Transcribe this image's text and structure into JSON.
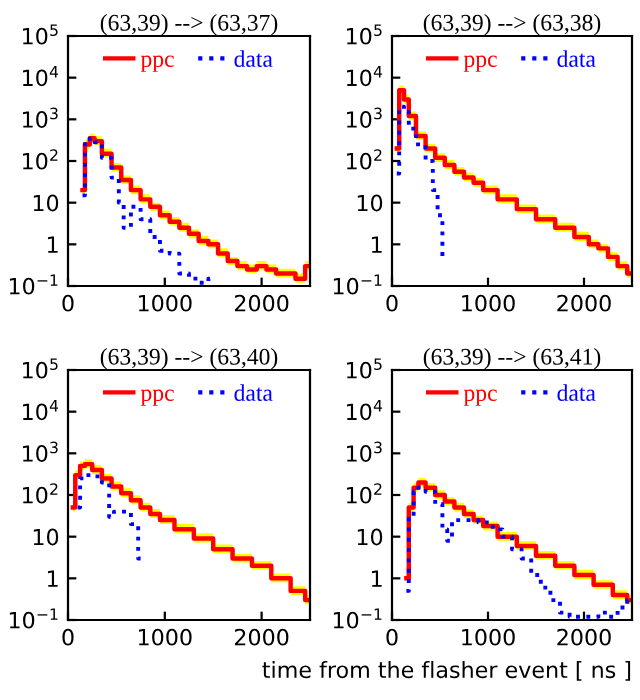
{
  "chart_data": [
    {
      "type": "step",
      "title": "(63,39) --> (63,37)",
      "log": "y",
      "legend": "top",
      "xlim": [
        0,
        2500
      ],
      "ylim": [
        0.1,
        100000
      ],
      "xticks": [
        0,
        1000,
        2000
      ],
      "yticks": [
        {
          "value": 0.1,
          "label": "10$^{−1}$"
        },
        1,
        10,
        {
          "value": 100,
          "label": "10$^{2}$"
        },
        {
          "value": 1000,
          "label": "10$^{3}$"
        },
        {
          "value": 10000,
          "label": "10$^{4}$"
        },
        {
          "value": 100000,
          "label": "10$^{5}$"
        }
      ],
      "series": [
        {
          "name": "ppc",
          "color": "#ff0000",
          "line_style": "solid",
          "x": [
            150,
            200,
            250,
            300,
            400,
            500,
            600,
            700,
            800,
            900,
            1000,
            1100,
            1200,
            1300,
            1400,
            1500,
            1600,
            1700,
            1800,
            1900,
            2000,
            2100,
            2200,
            2300,
            2400,
            2500
          ],
          "values": [
            20,
            250,
            350,
            300,
            150,
            70,
            35,
            20,
            12,
            8,
            5,
            3.5,
            2.5,
            1.8,
            1.2,
            1,
            0.6,
            0.4,
            0.3,
            0.25,
            0.3,
            0.25,
            0.2,
            0.2,
            0.15,
            0.3
          ],
          "lower": [
            15,
            200,
            280,
            240,
            120,
            55,
            28,
            16,
            9.5,
            6.4,
            4,
            2.8,
            2,
            1.4,
            0.95,
            0.8,
            0.48,
            0.32,
            0.24,
            0.2,
            0.24,
            0.2,
            0.16,
            0.16,
            0.12,
            0.24
          ],
          "upper": [
            26,
            320,
            450,
            390,
            200,
            90,
            45,
            26,
            16,
            10,
            6.5,
            4.5,
            3.3,
            2.3,
            1.6,
            1.3,
            0.8,
            0.5,
            0.4,
            0.33,
            0.4,
            0.33,
            0.26,
            0.26,
            0.2,
            0.4
          ]
        },
        {
          "name": "data",
          "color": "#0000ff",
          "line_style": "dotted",
          "x": [
            150,
            200,
            250,
            300,
            400,
            500,
            550,
            600,
            700,
            800,
            900,
            1000,
            1100,
            1200,
            1300,
            1400,
            1500
          ],
          "values": [
            15,
            300,
            350,
            280,
            120,
            40,
            10,
            2.5,
            8,
            4,
            1.5,
            0.7,
            0.6,
            0.2,
            0.15,
            0.12,
            0.15
          ]
        }
      ]
    },
    {
      "type": "step",
      "title": "(63,39) --> (63,38)",
      "log": "y",
      "legend": "top",
      "xlim": [
        0,
        2500
      ],
      "ylim": [
        0.1,
        100000
      ],
      "xticks": [
        0,
        1000,
        2000
      ],
      "yticks": [
        {
          "value": 0.1,
          "label": "10$^{−1}$"
        },
        1,
        10,
        {
          "value": 100,
          "label": "10$^{2}$"
        },
        {
          "value": 1000,
          "label": "10$^{3}$"
        },
        {
          "value": 10000,
          "label": "10$^{4}$"
        },
        {
          "value": 100000,
          "label": "10$^{5}$"
        }
      ],
      "series": [
        {
          "name": "ppc",
          "color": "#ff0000",
          "line_style": "solid",
          "x": [
            50,
            100,
            150,
            200,
            300,
            400,
            500,
            600,
            700,
            800,
            900,
            1000,
            1200,
            1400,
            1600,
            1800,
            2000,
            2100,
            2200,
            2300,
            2400,
            2500
          ],
          "values": [
            200,
            5000,
            3000,
            1200,
            400,
            200,
            120,
            80,
            55,
            40,
            30,
            20,
            12,
            7,
            4,
            2.5,
            1.5,
            1,
            0.8,
            0.5,
            0.3,
            0.2
          ],
          "lower": [
            160,
            4000,
            2400,
            950,
            320,
            160,
            95,
            64,
            44,
            32,
            24,
            16,
            9.5,
            5.6,
            3.2,
            2,
            1.2,
            0.8,
            0.64,
            0.4,
            0.24,
            0.16
          ],
          "upper": [
            260,
            6500,
            3900,
            1550,
            520,
            260,
            155,
            105,
            72,
            52,
            39,
            26,
            16,
            9,
            5.2,
            3.3,
            2,
            1.3,
            1,
            0.65,
            0.4,
            0.26
          ]
        },
        {
          "name": "data",
          "color": "#0000ff",
          "line_style": "dotted",
          "x": [
            50,
            100,
            150,
            200,
            300,
            400,
            450,
            500,
            550
          ],
          "values": [
            50,
            2000,
            1500,
            600,
            250,
            100,
            20,
            5,
            0.5
          ]
        }
      ]
    },
    {
      "type": "step",
      "title": "(63,39) --> (63,40)",
      "log": "y",
      "legend": "top",
      "xlim": [
        0,
        2500
      ],
      "ylim": [
        0.1,
        100000
      ],
      "xticks": [
        0,
        1000,
        2000
      ],
      "yticks": [
        {
          "value": 0.1,
          "label": "10$^{−1}$"
        },
        1,
        10,
        {
          "value": 100,
          "label": "10$^{2}$"
        },
        {
          "value": 1000,
          "label": "10$^{3}$"
        },
        {
          "value": 10000,
          "label": "10$^{4}$"
        },
        {
          "value": 100000,
          "label": "10$^{5}$"
        }
      ],
      "series": [
        {
          "name": "ppc",
          "color": "#ff0000",
          "line_style": "solid",
          "x": [
            50,
            100,
            150,
            200,
            300,
            400,
            500,
            600,
            700,
            800,
            900,
            1000,
            1200,
            1400,
            1600,
            1800,
            2000,
            2200,
            2400,
            2500
          ],
          "values": [
            50,
            300,
            500,
            550,
            400,
            250,
            160,
            110,
            75,
            50,
            35,
            25,
            15,
            9,
            5,
            3,
            2,
            1,
            0.5,
            0.3
          ],
          "lower": [
            40,
            240,
            400,
            440,
            320,
            200,
            128,
            88,
            60,
            40,
            28,
            20,
            12,
            7.2,
            4,
            2.4,
            1.6,
            0.8,
            0.4,
            0.24
          ],
          "upper": [
            65,
            390,
            650,
            720,
            520,
            325,
            210,
            145,
            98,
            65,
            46,
            33,
            20,
            12,
            6.5,
            3.9,
            2.6,
            1.3,
            0.65,
            0.39
          ]
        },
        {
          "name": "data",
          "color": "#0000ff",
          "line_style": "dotted",
          "x": [
            100,
            150,
            200,
            300,
            400,
            450,
            500,
            600,
            700,
            750
          ],
          "values": [
            50,
            250,
            300,
            280,
            200,
            30,
            40,
            40,
            20,
            3
          ]
        }
      ]
    },
    {
      "type": "step",
      "title": "(63,39) --> (63,41)",
      "xlabel": "time from the flasher event [ ns ]",
      "log": "y",
      "legend": "top",
      "xlim": [
        0,
        2500
      ],
      "ylim": [
        0.1,
        100000
      ],
      "xticks": [
        0,
        1000,
        2000
      ],
      "yticks": [
        {
          "value": 0.1,
          "label": "10$^{−1}$"
        },
        1,
        10,
        {
          "value": 100,
          "label": "10$^{2}$"
        },
        {
          "value": 1000,
          "label": "10$^{3}$"
        },
        {
          "value": 10000,
          "label": "10$^{4}$"
        },
        {
          "value": 100000,
          "label": "10$^{5}$"
        }
      ],
      "series": [
        {
          "name": "ppc",
          "color": "#ff0000",
          "line_style": "solid",
          "x": [
            150,
            200,
            250,
            300,
            400,
            500,
            600,
            700,
            800,
            900,
            1000,
            1200,
            1400,
            1600,
            1800,
            2000,
            2200,
            2400,
            2500
          ],
          "values": [
            1,
            50,
            150,
            200,
            150,
            100,
            70,
            50,
            35,
            25,
            18,
            10,
            6,
            3.5,
            2,
            1.2,
            0.7,
            0.4,
            0.3
          ],
          "lower": [
            0.8,
            40,
            120,
            160,
            120,
            80,
            56,
            40,
            28,
            20,
            14,
            8,
            4.8,
            2.8,
            1.6,
            0.95,
            0.56,
            0.32,
            0.24
          ],
          "upper": [
            1.3,
            65,
            195,
            260,
            195,
            130,
            90,
            65,
            45,
            32,
            23,
            13,
            7.8,
            4.5,
            2.6,
            1.6,
            0.9,
            0.52,
            0.39
          ]
        },
        {
          "name": "data",
          "color": "#0000ff",
          "line_style": "dotted",
          "x": [
            150,
            200,
            250,
            300,
            400,
            500,
            550,
            600,
            650,
            800,
            1000,
            1100,
            1200,
            1300,
            1400,
            1500,
            1600,
            1700,
            1800,
            1900,
            2000,
            2100,
            2200,
            2300,
            2400,
            2500
          ],
          "values": [
            0.5,
            30,
            120,
            150,
            120,
            60,
            15,
            8,
            25,
            25,
            22,
            15,
            10,
            5,
            3,
            1.2,
            0.6,
            0.3,
            0.15,
            0.12,
            0.12,
            0.12,
            0.15,
            0.12,
            0.2,
            0.3
          ]
        }
      ]
    }
  ]
}
